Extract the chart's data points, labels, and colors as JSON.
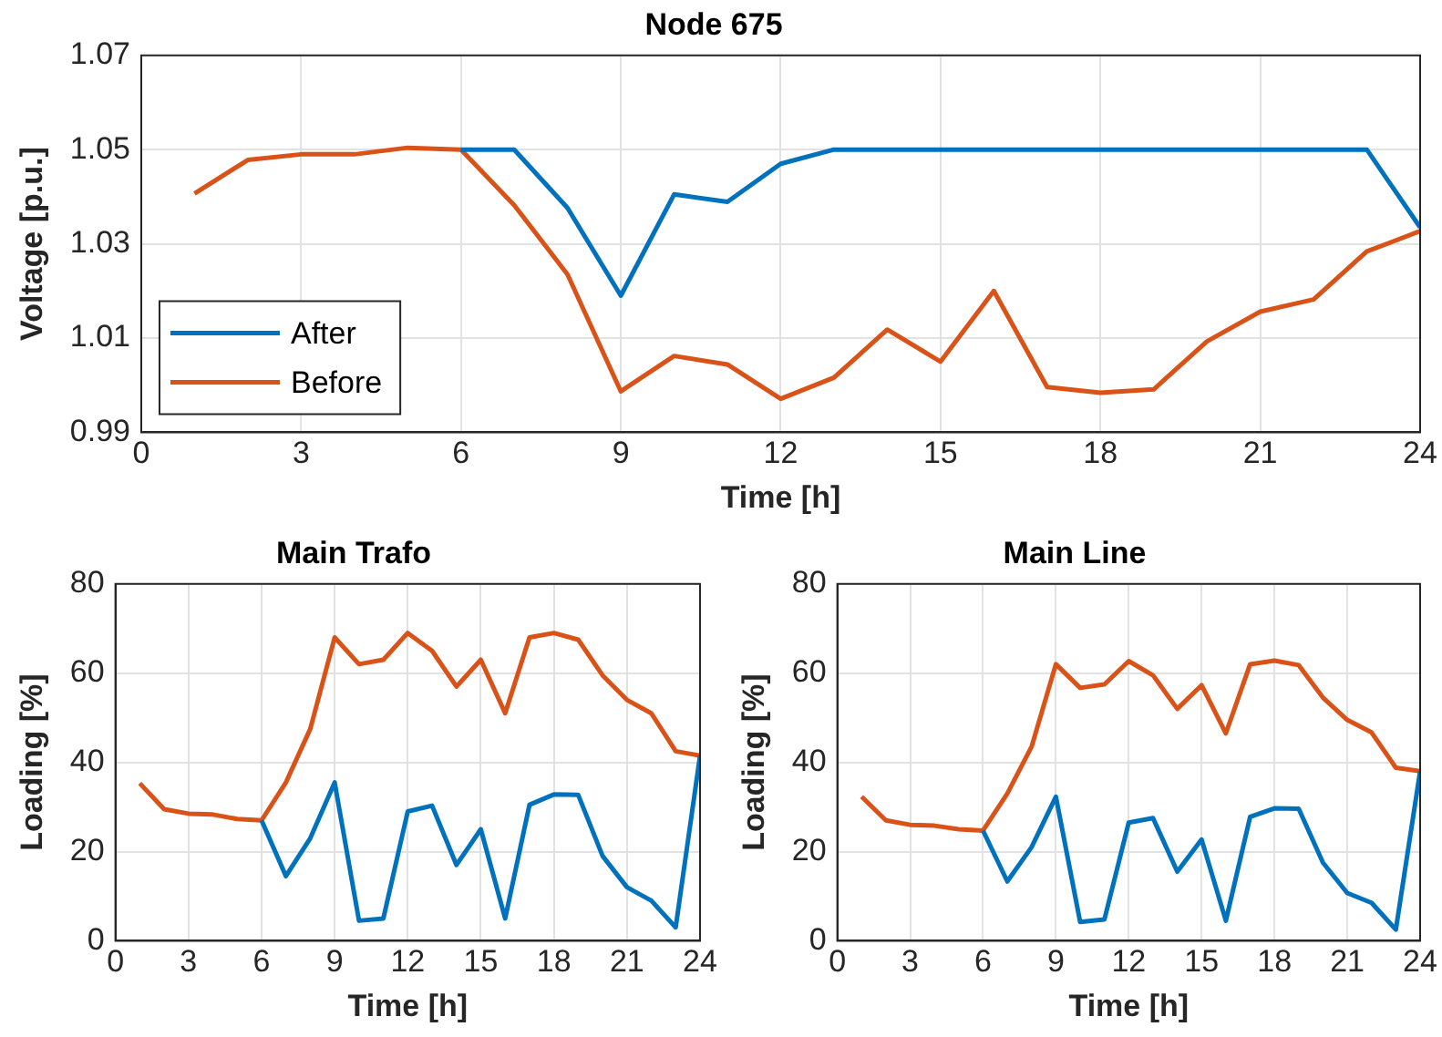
{
  "chart_data": [
    {
      "type": "line",
      "title": "Node 675",
      "xlabel": "Time [h]",
      "ylabel": "Voltage [p.u.]",
      "x": [
        1,
        2,
        3,
        4,
        5,
        6,
        7,
        8,
        9,
        10,
        11,
        12,
        13,
        14,
        15,
        16,
        17,
        18,
        19,
        20,
        21,
        22,
        23,
        24
      ],
      "xlim": [
        0,
        24
      ],
      "xticks": [
        0,
        3,
        6,
        9,
        12,
        15,
        18,
        21,
        24
      ],
      "ylim": [
        0.99,
        1.07
      ],
      "yticks": [
        0.99,
        1.01,
        1.03,
        1.05,
        1.07
      ],
      "grid": true,
      "legend": "bottom left",
      "series": [
        {
          "name": "After",
          "color": "#0072bd",
          "values": [
            null,
            null,
            null,
            null,
            null,
            1.05,
            1.05,
            1.0376,
            1.019,
            1.0405,
            1.0389,
            1.047,
            1.05,
            1.05,
            1.05,
            1.05,
            1.05,
            1.05,
            1.05,
            1.05,
            1.05,
            1.05,
            1.05,
            1.0335
          ]
        },
        {
          "name": "Before",
          "color": "#d95319",
          "values": [
            1.0407,
            1.0478,
            1.049,
            1.049,
            1.0504,
            1.05,
            1.0382,
            1.0235,
            0.9987,
            1.0062,
            1.0044,
            0.9971,
            1.0016,
            1.0118,
            1.005,
            1.02,
            0.9996,
            0.9984,
            0.9991,
            1.0093,
            1.0156,
            1.0182,
            1.0284,
            1.0327
          ]
        }
      ]
    },
    {
      "type": "line",
      "title": "Main Trafo",
      "xlabel": "Time [h]",
      "ylabel": "Loading [%]",
      "x": [
        1,
        2,
        3,
        4,
        5,
        6,
        7,
        8,
        9,
        10,
        11,
        12,
        13,
        14,
        15,
        16,
        17,
        18,
        19,
        20,
        21,
        22,
        23,
        24
      ],
      "xlim": [
        0,
        24
      ],
      "xticks": [
        0,
        3,
        6,
        9,
        12,
        15,
        18,
        21,
        24
      ],
      "ylim": [
        0,
        80
      ],
      "yticks": [
        0,
        20,
        40,
        60,
        80
      ],
      "grid": true,
      "series": [
        {
          "color": "#0072bd",
          "values": [
            null,
            null,
            null,
            null,
            null,
            27,
            14.5,
            23,
            35.5,
            4.5,
            5,
            29,
            30.3,
            17,
            25,
            5,
            30.5,
            32.8,
            32.7,
            19,
            12,
            9,
            3,
            41.5
          ]
        },
        {
          "color": "#d95319",
          "values": [
            35.3,
            29.5,
            28.5,
            28.3,
            27.3,
            27,
            35.5,
            47.5,
            68,
            62,
            63,
            69,
            65,
            57,
            63,
            51,
            68,
            69,
            67.5,
            59.5,
            54,
            51,
            42.5,
            41.5
          ]
        }
      ]
    },
    {
      "type": "line",
      "title": "Main Line",
      "xlabel": "Time [h]",
      "ylabel": "Loading [%]",
      "x": [
        1,
        2,
        3,
        4,
        5,
        6,
        7,
        8,
        9,
        10,
        11,
        12,
        13,
        14,
        15,
        16,
        17,
        18,
        19,
        20,
        21,
        22,
        23,
        24
      ],
      "xlim": [
        0,
        24
      ],
      "xticks": [
        0,
        3,
        6,
        9,
        12,
        15,
        18,
        21,
        24
      ],
      "ylim": [
        0,
        80
      ],
      "yticks": [
        0,
        20,
        40,
        60,
        80
      ],
      "grid": true,
      "series": [
        {
          "color": "#0072bd",
          "values": [
            null,
            null,
            null,
            null,
            null,
            24.7,
            13.3,
            21,
            32.3,
            4.2,
            4.8,
            26.5,
            27.5,
            15.5,
            22.7,
            4.5,
            27.8,
            29.7,
            29.6,
            17.5,
            10.7,
            8.5,
            2.5,
            38
          ]
        },
        {
          "color": "#d95319",
          "values": [
            32.3,
            27,
            26,
            25.8,
            25,
            24.7,
            33,
            43.5,
            62,
            56.7,
            57.5,
            62.7,
            59.5,
            52,
            57.3,
            46.5,
            62,
            62.8,
            61.8,
            54.5,
            49.5,
            46.7,
            38.8,
            38
          ]
        }
      ]
    }
  ]
}
